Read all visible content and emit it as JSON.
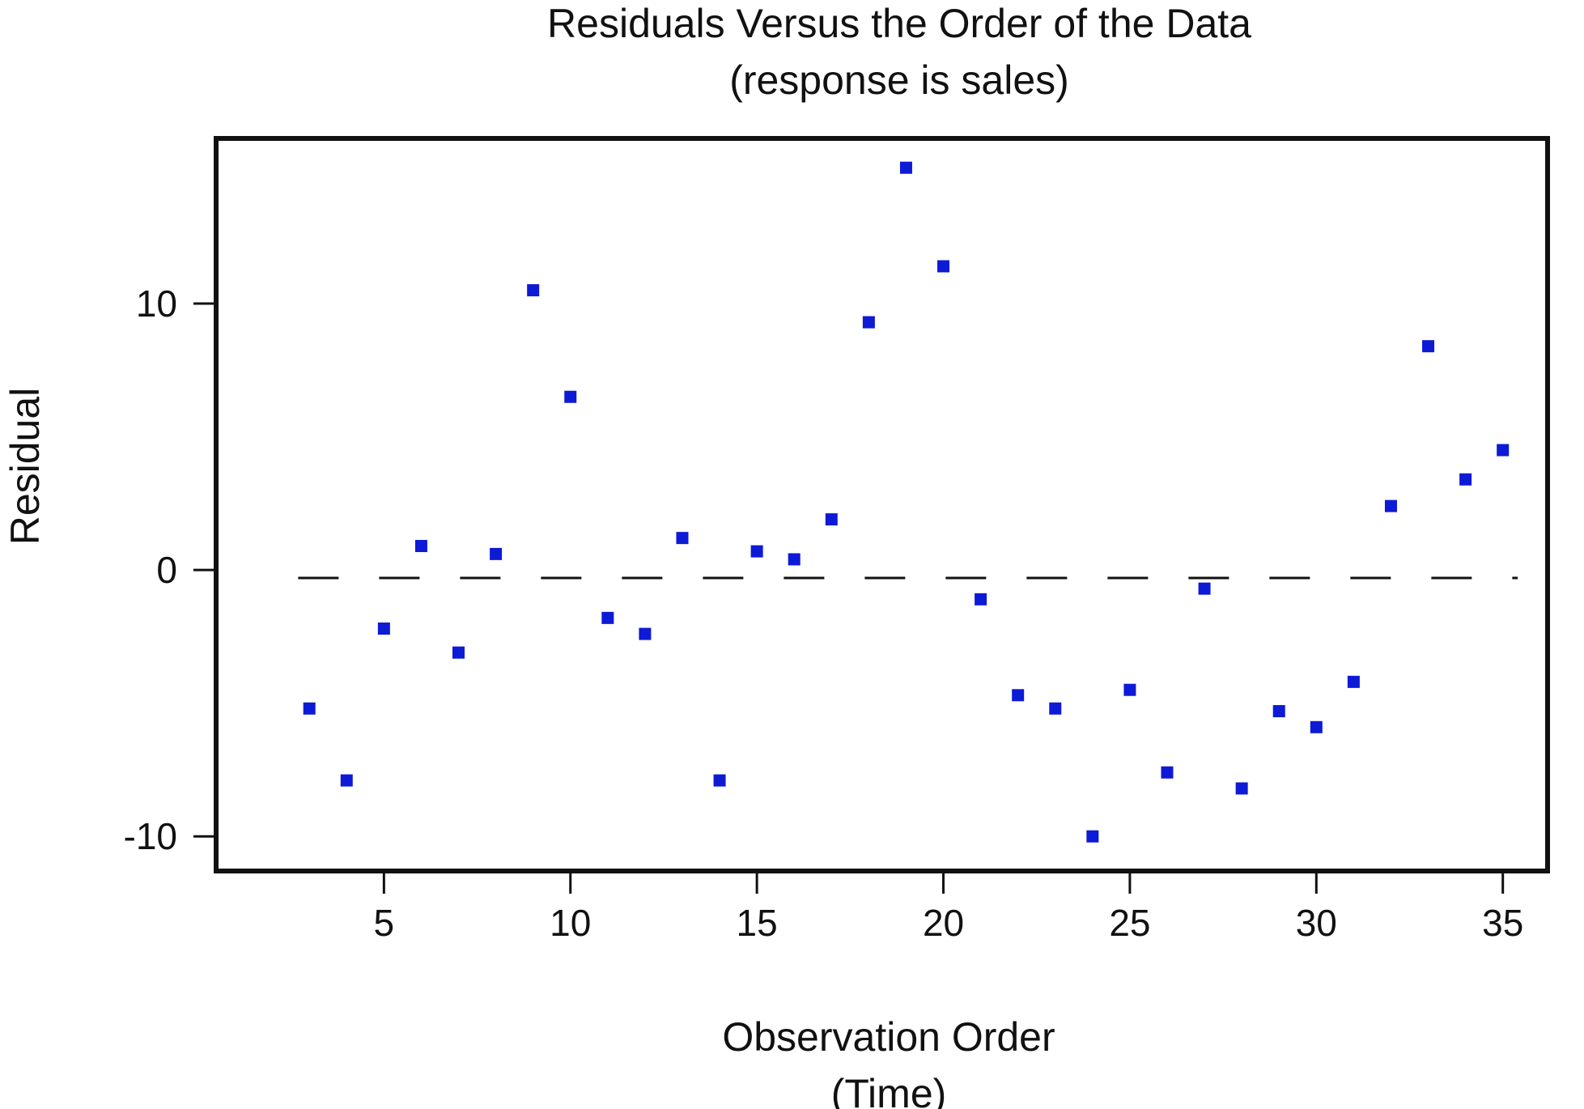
{
  "chart_data": {
    "type": "scatter",
    "title": "Residuals Versus the Order of the Data",
    "subtitle": "(response is sales)",
    "xlabel": "Observation Order",
    "xlabel_sub": "(Time)",
    "ylabel": "Residual",
    "xlim": [
      0.5,
      36.2
    ],
    "ylim": [
      -11.3,
      16.2
    ],
    "x_ticks": [
      5,
      10,
      15,
      20,
      25,
      30,
      35
    ],
    "x_tick_labels": [
      "5",
      "10",
      "15",
      "20",
      "25",
      "30",
      "35"
    ],
    "y_ticks": [
      -10,
      0,
      10
    ],
    "y_tick_labels": [
      "-10",
      "0",
      "10"
    ],
    "reference_line": {
      "y": -0.3,
      "style": "dashed",
      "color": "#111111"
    },
    "grid": false,
    "legend": "none",
    "marker_color": "#0d1ad6",
    "series": [
      {
        "x": [
          3,
          4,
          5,
          6,
          7,
          8,
          9,
          10,
          11,
          12,
          13,
          14,
          15,
          16,
          17,
          18,
          19,
          20,
          21,
          22,
          23,
          24,
          25,
          26,
          27,
          28,
          29,
          30,
          31,
          32,
          33,
          34,
          35
        ],
        "values": [
          -5.2,
          -7.9,
          -2.2,
          0.9,
          -3.1,
          0.6,
          10.5,
          6.5,
          -1.8,
          -2.4,
          1.2,
          -7.9,
          0.7,
          0.4,
          1.9,
          9.3,
          15.1,
          11.4,
          -1.1,
          -4.7,
          -5.2,
          -10.0,
          -4.5,
          -7.6,
          -0.7,
          -8.2,
          -5.3,
          -5.9,
          -4.2,
          2.4,
          8.4,
          3.4,
          4.5
        ]
      }
    ]
  }
}
